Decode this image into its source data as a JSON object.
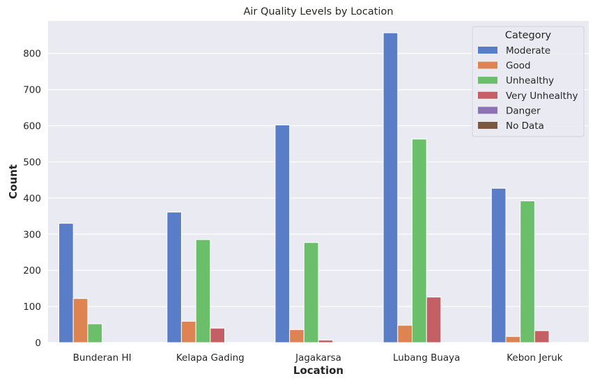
{
  "chart_data": {
    "type": "bar",
    "title": "Air Quality Levels by Location",
    "xlabel": "Location",
    "ylabel": "Count",
    "categories": [
      "Bunderan HI",
      "Kelapa Gading",
      "Jagakarsa",
      "Lubang Buaya",
      "Kebon Jeruk"
    ],
    "ylim": [
      0,
      890
    ],
    "yticks": [
      0,
      100,
      200,
      300,
      400,
      500,
      600,
      700,
      800
    ],
    "grid": true,
    "legend": {
      "title": "Category",
      "placement": "top-right"
    },
    "series": [
      {
        "name": "Moderate",
        "color": "#5a7dc8",
        "values": [
          330,
          361,
          602,
          857,
          427
        ]
      },
      {
        "name": "Good",
        "color": "#dd8452",
        "values": [
          122,
          59,
          36,
          48,
          17
        ]
      },
      {
        "name": "Unhealthy",
        "color": "#6bbf6b",
        "values": [
          52,
          285,
          277,
          563,
          392
        ]
      },
      {
        "name": "Very Unhealthy",
        "color": "#c45f65",
        "values": [
          0,
          40,
          7,
          126,
          33
        ]
      },
      {
        "name": "Danger",
        "color": "#8e72b6",
        "values": [
          0,
          0,
          0,
          0,
          0
        ]
      },
      {
        "name": "No Data",
        "color": "#7a5940",
        "values": [
          0,
          0,
          0,
          0,
          0
        ]
      }
    ],
    "plot_background": "#eaeaf2",
    "grid_color": "#ffffff"
  }
}
